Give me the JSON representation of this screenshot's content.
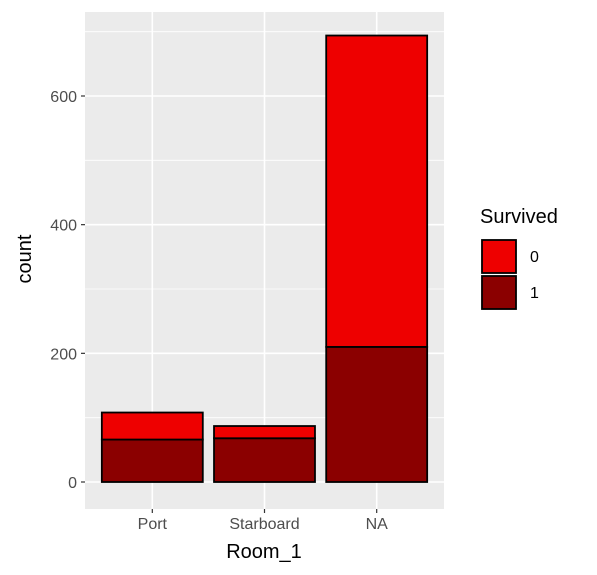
{
  "chart_data": {
    "type": "bar",
    "stacked": true,
    "categories": [
      "Port",
      "Starboard",
      "NA"
    ],
    "series": [
      {
        "name": "0",
        "values": [
          42,
          19,
          484
        ],
        "color": "#ee0000"
      },
      {
        "name": "1",
        "values": [
          66,
          68,
          210
        ],
        "color": "#8b0000"
      }
    ],
    "xlabel": "Room_1",
    "ylabel": "count",
    "ylim": [
      0,
      725
    ],
    "yticks": [
      0,
      200,
      400,
      600
    ],
    "grid": true,
    "panel_background": "#ebebeb",
    "bar_outline": "#000000",
    "legend": {
      "title": "Survived",
      "placement": "right",
      "items": [
        {
          "label": "0",
          "color": "#ee0000"
        },
        {
          "label": "1",
          "color": "#8b0000"
        }
      ]
    }
  }
}
